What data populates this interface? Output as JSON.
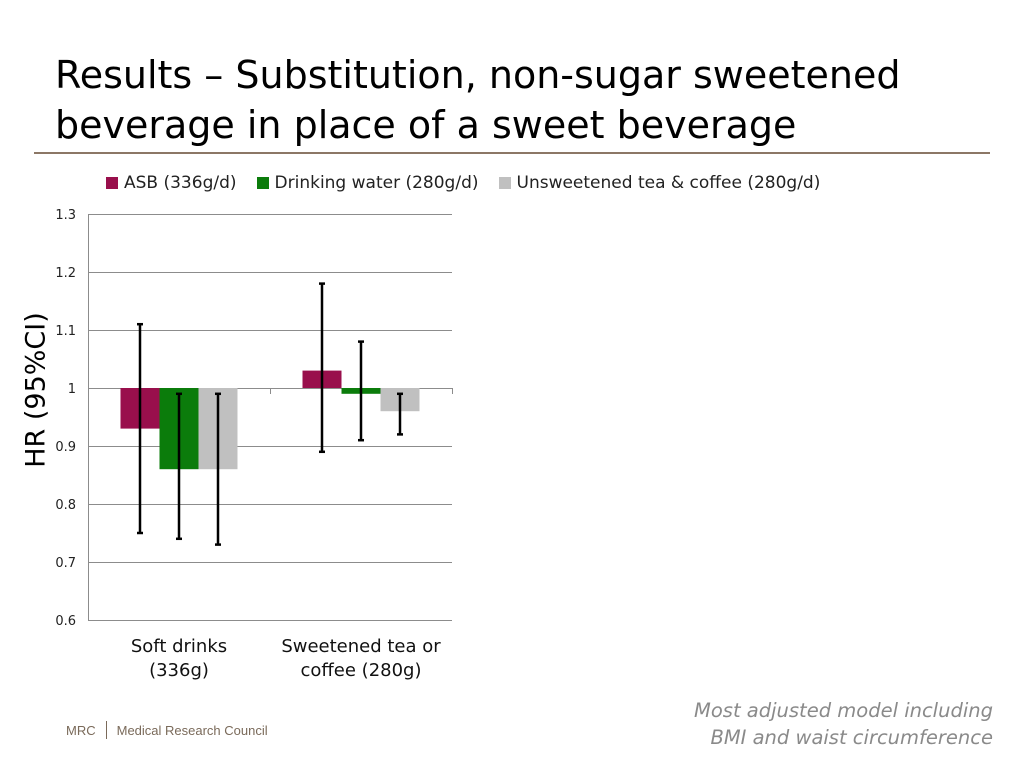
{
  "slide": {
    "title": "Results – Substitution, non-sugar sweetened beverage in place of a sweet beverage",
    "note_line1": "Most adjusted model including",
    "note_line2": "BMI and waist circumference"
  },
  "footer": {
    "org_short": "MRC",
    "org_full": "Medical Research Council"
  },
  "chart_data": {
    "type": "bar",
    "baseline": 1,
    "ylabel": "HR (95%CI)",
    "ylim": [
      0.6,
      1.3
    ],
    "yticks": [
      0.6,
      0.7,
      0.8,
      0.9,
      1,
      1.1,
      1.2,
      1.3
    ],
    "ytick_labels": [
      "0.6",
      "0.7",
      "0.8",
      "0.9",
      "1",
      "1.1",
      "1.2",
      "1.3"
    ],
    "grid": true,
    "legend_position": "top",
    "categories": [
      "Soft drinks (336g)",
      "Sweetened tea or coffee (280g)"
    ],
    "category_lines": [
      [
        "Soft drinks",
        "(336g)"
      ],
      [
        "Sweetened tea or",
        "coffee (280g)"
      ]
    ],
    "series": [
      {
        "name": "ASB (336g/d)",
        "color": "#990f4c",
        "values": [
          0.93,
          1.03
        ],
        "lower": [
          0.75,
          0.89
        ],
        "upper": [
          1.11,
          1.18
        ]
      },
      {
        "name": "Drinking water (280g/d)",
        "color": "#0b7c0b",
        "values": [
          0.86,
          0.99
        ],
        "lower": [
          0.74,
          0.91
        ],
        "upper": [
          0.99,
          1.08
        ]
      },
      {
        "name": "Unsweetened tea & coffee (280g/d)",
        "color": "#c0c0c0",
        "values": [
          0.86,
          0.96
        ],
        "lower": [
          0.73,
          0.92
        ],
        "upper": [
          0.99,
          0.99
        ]
      }
    ]
  }
}
